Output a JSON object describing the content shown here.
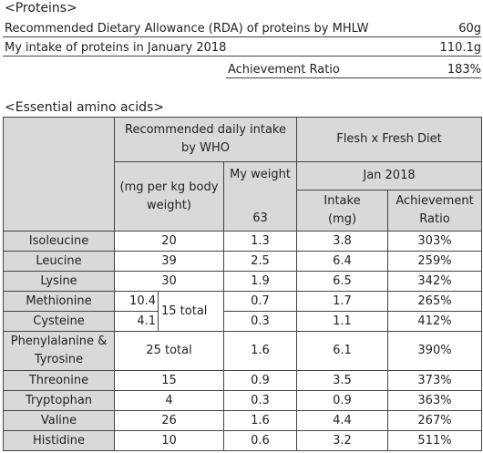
{
  "proteins": {
    "title": "<Proteins>",
    "rda": {
      "label": "Recommended Dietary Allowance (RDA) of proteins by MHLW",
      "value": "60g"
    },
    "intake": {
      "label": "My intake of proteins in January 2018",
      "value": "110.1g"
    },
    "ratio": {
      "label": "Achievement Ratio",
      "value": "183%"
    }
  },
  "amino": {
    "title": "<Essential amino acids>",
    "header": {
      "who": "Recommended daily intake by WHO",
      "diet": "Flesh x Fresh Diet",
      "unit": "(mg per kg body weight)",
      "my_weight": "My weight",
      "weight": "63",
      "month": "Jan 2018",
      "intake": "Intake (mg)",
      "ratio": "Achievement Ratio"
    },
    "shared_total": "15 total",
    "rows": [
      {
        "name": "Isoleucine",
        "who": "20",
        "weight": "1.3",
        "intake": "3.8",
        "ratio": "303%"
      },
      {
        "name": "Leucine",
        "who": "39",
        "weight": "2.5",
        "intake": "6.4",
        "ratio": "259%"
      },
      {
        "name": "Lysine",
        "who": "30",
        "weight": "1.9",
        "intake": "6.5",
        "ratio": "342%"
      },
      {
        "name": "Methionine",
        "who": "10.4",
        "weight": "0.7",
        "intake": "1.7",
        "ratio": "265%"
      },
      {
        "name": "Cysteine",
        "who": "4.1",
        "weight": "0.3",
        "intake": "1.1",
        "ratio": "412%"
      },
      {
        "name": "Phenylalanine & Tyrosine",
        "who": "25 total",
        "weight": "1.6",
        "intake": "6.1",
        "ratio": "390%"
      },
      {
        "name": "Threonine",
        "who": "15",
        "weight": "0.9",
        "intake": "3.5",
        "ratio": "373%"
      },
      {
        "name": "Tryptophan",
        "who": "4",
        "weight": "0.3",
        "intake": "0.9",
        "ratio": "363%"
      },
      {
        "name": "Valine",
        "who": "26",
        "weight": "1.6",
        "intake": "4.4",
        "ratio": "267%"
      },
      {
        "name": "Histidine",
        "who": "10",
        "weight": "0.6",
        "intake": "3.2",
        "ratio": "511%"
      }
    ]
  }
}
